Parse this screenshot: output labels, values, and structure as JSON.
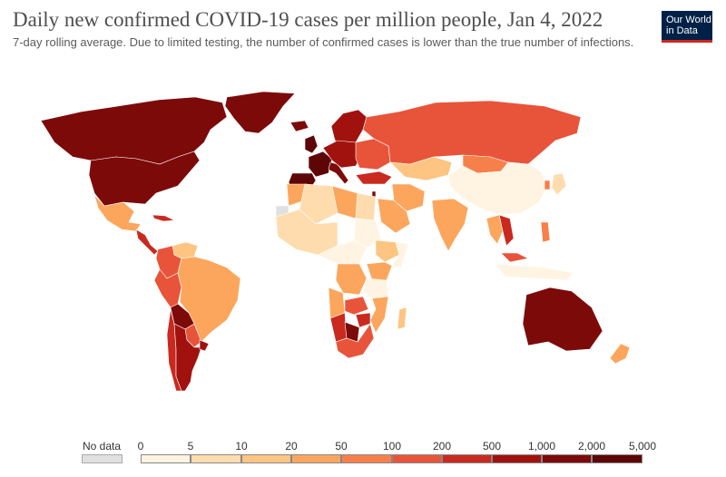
{
  "header": {
    "title": "Daily new confirmed COVID-19 cases per million people, Jan 4, 2022",
    "subtitle": "7-day rolling average. Due to limited testing, the number of confirmed cases is lower than the true number of infections."
  },
  "logo": {
    "line1": "Our World",
    "line2": "in Data"
  },
  "legend": {
    "nodata_label": "No data",
    "nodata_color": "#e0e0e0",
    "ticks": [
      "0",
      "5",
      "10",
      "20",
      "50",
      "100",
      "200",
      "500",
      "1,000",
      "2,000",
      "5,000"
    ],
    "bins": [
      "#fff3e2",
      "#fedcae",
      "#fdc581",
      "#fca65d",
      "#f7804a",
      "#e8543a",
      "#c9291f",
      "#a1120f",
      "#7c0a09",
      "#5e0606"
    ]
  },
  "chart_data": {
    "type": "choropleth",
    "title": "Daily new confirmed COVID-19 cases per million people, Jan 4, 2022",
    "metric": "7-day rolling average of daily new confirmed cases per million",
    "bin_edges": [
      0,
      5,
      10,
      20,
      50,
      100,
      200,
      500,
      1000,
      2000,
      5000
    ],
    "regions": [
      {
        "name": "Canada",
        "bin": 8
      },
      {
        "name": "United States",
        "bin": 8
      },
      {
        "name": "Greenland",
        "bin": 8
      },
      {
        "name": "Mexico",
        "bin": 3
      },
      {
        "name": "Central America",
        "bin": 6
      },
      {
        "name": "Cuba",
        "bin": 6
      },
      {
        "name": "Venezuela",
        "bin": 2
      },
      {
        "name": "Colombia",
        "bin": 5
      },
      {
        "name": "Peru",
        "bin": 5
      },
      {
        "name": "Brazil",
        "bin": 3
      },
      {
        "name": "Bolivia",
        "bin": 8
      },
      {
        "name": "Paraguay",
        "bin": 5
      },
      {
        "name": "Argentina",
        "bin": 7
      },
      {
        "name": "Chile",
        "bin": 6
      },
      {
        "name": "Uruguay",
        "bin": 7
      },
      {
        "name": "Iceland",
        "bin": 8
      },
      {
        "name": "Scandinavia",
        "bin": 7
      },
      {
        "name": "United Kingdom",
        "bin": 9
      },
      {
        "name": "France",
        "bin": 9
      },
      {
        "name": "Spain",
        "bin": 9
      },
      {
        "name": "Italy",
        "bin": 8
      },
      {
        "name": "Central Europe",
        "bin": 7
      },
      {
        "name": "Eastern Europe",
        "bin": 5
      },
      {
        "name": "Russia",
        "bin": 5
      },
      {
        "name": "Turkey",
        "bin": 6
      },
      {
        "name": "Israel",
        "bin": 8
      },
      {
        "name": "Kazakhstan",
        "bin": 2
      },
      {
        "name": "Mongolia",
        "bin": 4
      },
      {
        "name": "China",
        "bin": 0
      },
      {
        "name": "Japan",
        "bin": 1
      },
      {
        "name": "South Korea",
        "bin": 4
      },
      {
        "name": "Iran",
        "bin": 3
      },
      {
        "name": "Saudi Arabia",
        "bin": 3
      },
      {
        "name": "India",
        "bin": 3
      },
      {
        "name": "Vietnam",
        "bin": 6
      },
      {
        "name": "Thailand",
        "bin": 3
      },
      {
        "name": "Philippines",
        "bin": 4
      },
      {
        "name": "Malaysia",
        "bin": 5
      },
      {
        "name": "Indonesia",
        "bin": 0
      },
      {
        "name": "Australia",
        "bin": 8
      },
      {
        "name": "New Zealand",
        "bin": 3
      },
      {
        "name": "Morocco",
        "bin": 3
      },
      {
        "name": "Algeria",
        "bin": 1
      },
      {
        "name": "Libya",
        "bin": 3
      },
      {
        "name": "Egypt",
        "bin": 1
      },
      {
        "name": "West Africa",
        "bin": 1
      },
      {
        "name": "Sudan",
        "bin": 0
      },
      {
        "name": "Ethiopia",
        "bin": 2
      },
      {
        "name": "Somalia",
        "bin": 0
      },
      {
        "name": "Central Africa",
        "bin": 0
      },
      {
        "name": "DR Congo",
        "bin": 3
      },
      {
        "name": "Angola",
        "bin": 3
      },
      {
        "name": "Tanzania",
        "bin": 0
      },
      {
        "name": "Kenya",
        "bin": 3
      },
      {
        "name": "Zambia",
        "bin": 5
      },
      {
        "name": "Zimbabwe",
        "bin": 6
      },
      {
        "name": "Namibia",
        "bin": 6
      },
      {
        "name": "Botswana",
        "bin": 8
      },
      {
        "name": "South Africa",
        "bin": 5
      },
      {
        "name": "Mozambique",
        "bin": 3
      },
      {
        "name": "Madagascar",
        "bin": 2
      },
      {
        "name": "Western Sahara",
        "bin": -1
      }
    ]
  }
}
